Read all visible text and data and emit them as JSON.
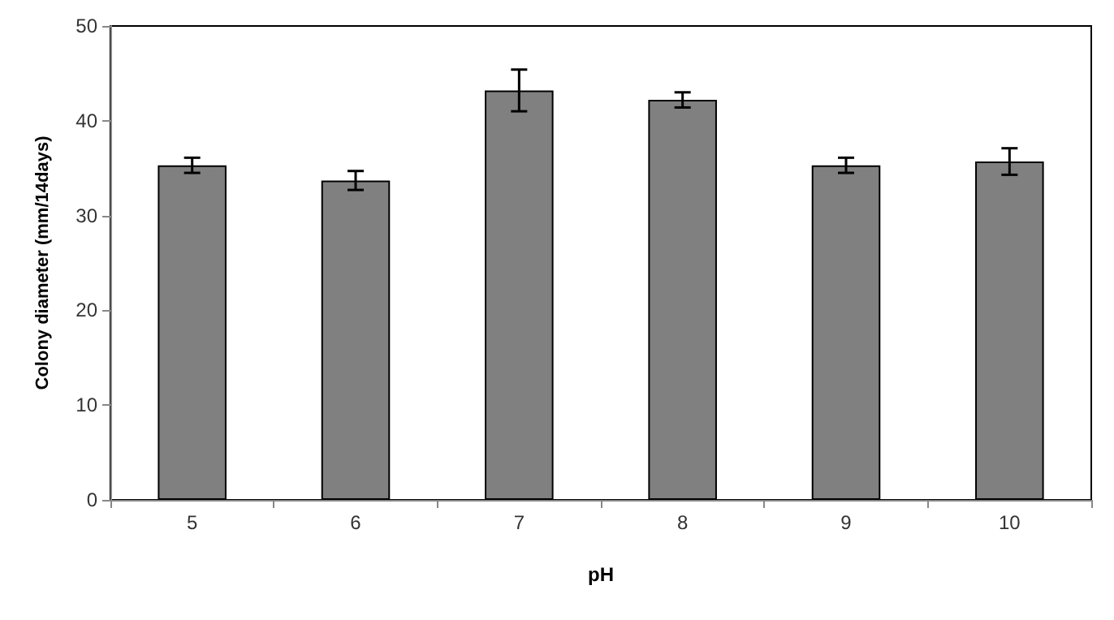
{
  "chart_data": {
    "type": "bar",
    "xlabel": "pH",
    "ylabel": "Colony diameter (mm/14days)",
    "categories": [
      "5",
      "6",
      "7",
      "8",
      "9",
      "10"
    ],
    "values": [
      35.3,
      33.7,
      43.2,
      42.2,
      35.3,
      35.7
    ],
    "errors": [
      0.8,
      1.0,
      2.2,
      0.8,
      0.8,
      1.4
    ],
    "color": "#808080",
    "ylim": [
      0,
      50
    ],
    "yticks": [
      0,
      10,
      20,
      30,
      40,
      50
    ],
    "grid": false
  }
}
